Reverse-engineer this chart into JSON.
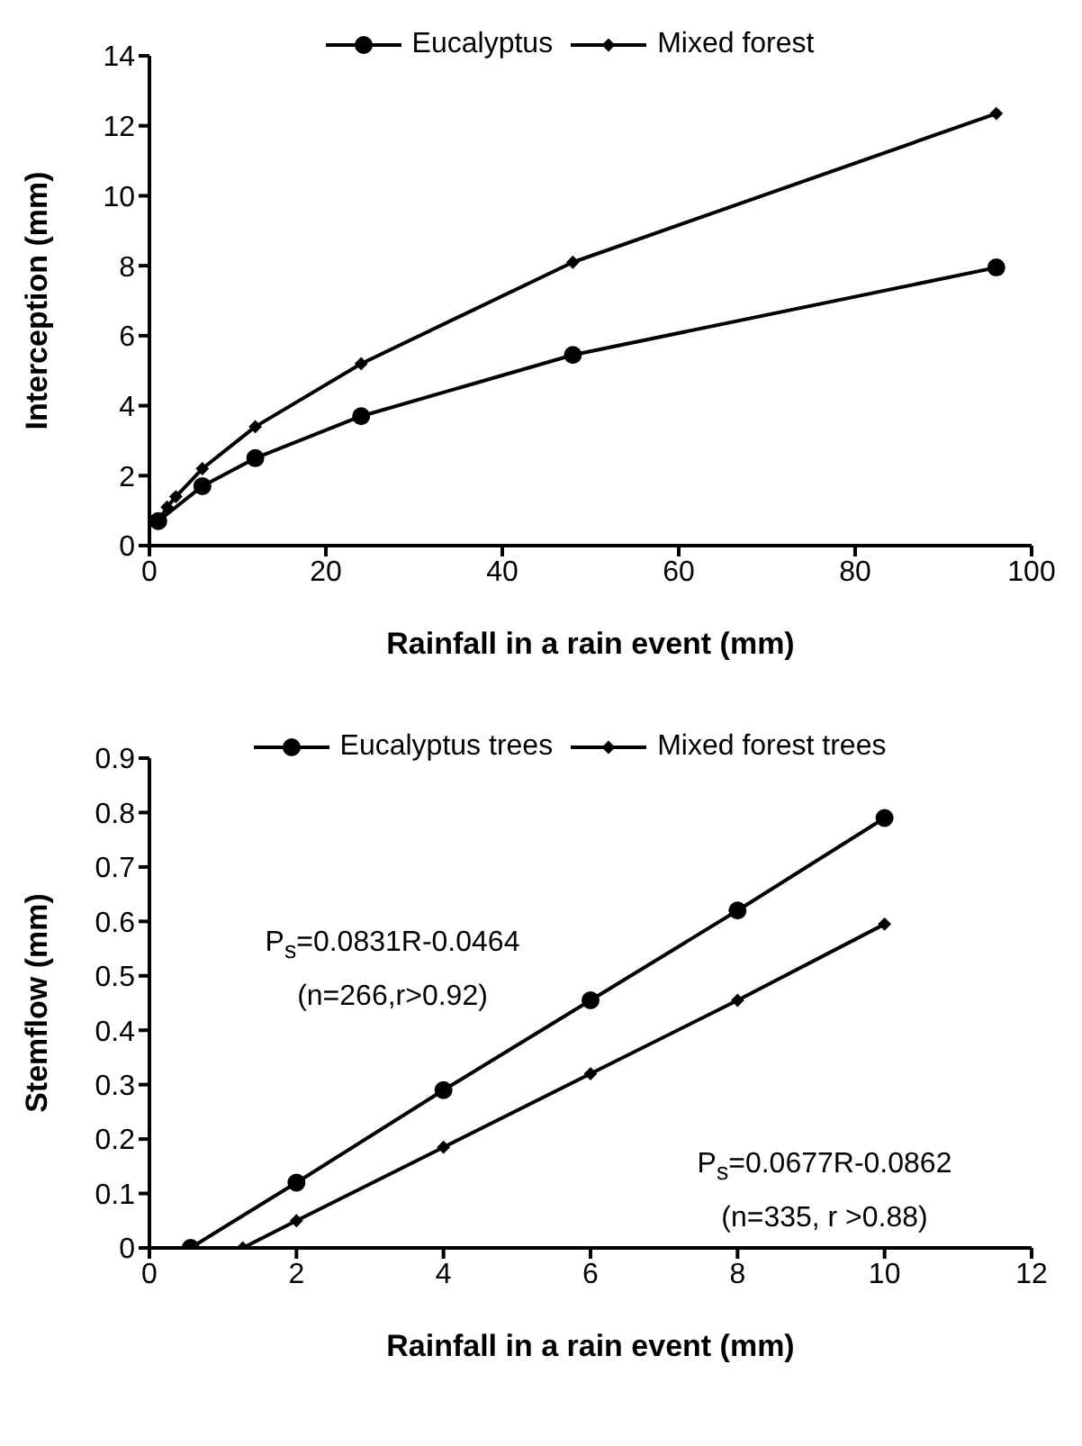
{
  "chart_data": [
    {
      "type": "line",
      "xlabel": "Rainfall in a rain event (mm)",
      "ylabel": "Interception (mm)",
      "xlim": [
        0,
        100
      ],
      "xticks": [
        0,
        20,
        40,
        60,
        80,
        100
      ],
      "ylim": [
        0,
        14
      ],
      "yticks": [
        0,
        2,
        4,
        6,
        8,
        10,
        12,
        14
      ],
      "grid": false,
      "legend": "top",
      "line_style": "solid",
      "series": [
        {
          "name": "Eucalyptus",
          "color": "#000000",
          "marker": "circle",
          "x": [
            1,
            6,
            12,
            24,
            48,
            96
          ],
          "values": [
            0.7,
            1.7,
            2.5,
            3.7,
            5.45,
            7.95
          ]
        },
        {
          "name": "Mixed forest",
          "color": "#000000",
          "marker": "diamond",
          "x": [
            1,
            2,
            3,
            6,
            12,
            24,
            48,
            96
          ],
          "values": [
            0.7,
            1.1,
            1.4,
            2.2,
            3.4,
            5.2,
            8.1,
            12.35
          ]
        }
      ]
    },
    {
      "type": "line",
      "xlabel": "Rainfall in a rain event (mm)",
      "ylabel": "Stemflow (mm)",
      "xlim": [
        0,
        12
      ],
      "xticks": [
        0,
        2,
        4,
        6,
        8,
        10,
        12
      ],
      "ylim": [
        0,
        0.9
      ],
      "yticks": [
        0,
        0.1,
        0.2,
        0.3,
        0.4,
        0.5,
        0.6,
        0.7,
        0.8,
        0.9
      ],
      "grid": false,
      "legend": "top",
      "line_style": "solid",
      "series": [
        {
          "name": "Eucalyptus trees",
          "color": "#000000",
          "marker": "circle",
          "x": [
            0.56,
            2,
            4,
            6,
            8,
            10
          ],
          "values": [
            0,
            0.12,
            0.29,
            0.455,
            0.62,
            0.79
          ]
        },
        {
          "name": "Mixed forest trees",
          "color": "#000000",
          "marker": "diamond",
          "x": [
            1.27,
            2,
            4,
            6,
            8,
            10
          ],
          "values": [
            0,
            0.05,
            0.185,
            0.32,
            0.455,
            0.595
          ]
        }
      ],
      "annotations": [
        "P$_{s}$=0.0831R-0.0464",
        "(n=266,r>0.92)",
        "P$_{s}$=0.0677R-0.0862",
        "(n=335, r >0.88)"
      ]
    }
  ]
}
